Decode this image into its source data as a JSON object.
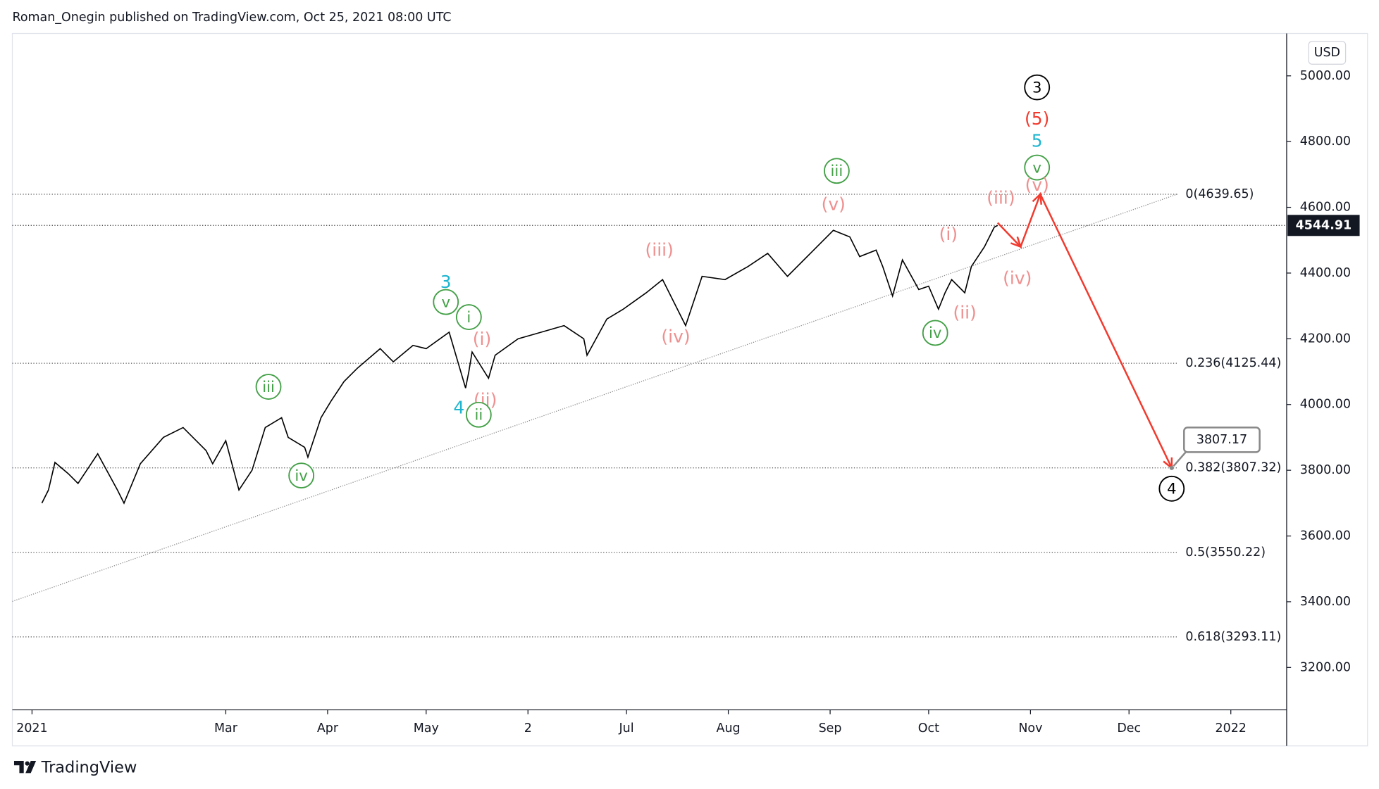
{
  "header": "Roman_Onegin published on TradingView.com, Oct 25, 2021 08:00 UTC",
  "footer": "TradingView",
  "chart_data": {
    "type": "line",
    "currency": "USD",
    "color": "#000000",
    "x": [
      3,
      5,
      7,
      11,
      14,
      20,
      26,
      28,
      33,
      40,
      46,
      53,
      55,
      59,
      63,
      67,
      71,
      76,
      78,
      83,
      84,
      88,
      91,
      95,
      99,
      106,
      110,
      116,
      120,
      127,
      132,
      133,
      134,
      139,
      141,
      148,
      155,
      162,
      168,
      169,
      175,
      180,
      187,
      192,
      199,
      204,
      211,
      218,
      224,
      230,
      237,
      244,
      249,
      252,
      257,
      259,
      262,
      265,
      270,
      273,
      276,
      278,
      280,
      284,
      286,
      290,
      293,
      294
    ],
    "values": [
      3700,
      3740,
      3824,
      3790,
      3760,
      3850,
      3740,
      3700,
      3820,
      3900,
      3930,
      3860,
      3820,
      3890,
      3740,
      3800,
      3930,
      3960,
      3900,
      3870,
      3840,
      3960,
      4010,
      4070,
      4110,
      4170,
      4130,
      4180,
      4170,
      4220,
      4050,
      4100,
      4160,
      4080,
      4150,
      4200,
      4220,
      4240,
      4200,
      4150,
      4260,
      4290,
      4340,
      4380,
      4240,
      4390,
      4380,
      4420,
      4460,
      4390,
      4460,
      4530,
      4510,
      4450,
      4470,
      4420,
      4330,
      4440,
      4350,
      4360,
      4290,
      4340,
      4380,
      4340,
      4420,
      4480,
      4540,
      4544.91
    ],
    "xlim": [
      -6,
      382
    ],
    "ylim": [
      3071,
      5129
    ],
    "xticks": [
      {
        "value": 0,
        "label": "2021"
      },
      {
        "value": 59,
        "label": "Mar"
      },
      {
        "value": 90,
        "label": "Apr"
      },
      {
        "value": 120,
        "label": "May"
      },
      {
        "value": 151,
        "label": "2"
      },
      {
        "value": 181,
        "label": "Jul"
      },
      {
        "value": 212,
        "label": "Aug"
      },
      {
        "value": 243,
        "label": "Sep"
      },
      {
        "value": 273,
        "label": "Oct"
      },
      {
        "value": 304,
        "label": "Nov"
      },
      {
        "value": 334,
        "label": "Dec"
      },
      {
        "value": 365,
        "label": "2022"
      }
    ],
    "yticks": [
      {
        "value": 5000,
        "label": "5000.00"
      },
      {
        "value": 4800,
        "label": "4800.00"
      },
      {
        "value": 4600,
        "label": "4600.00"
      },
      {
        "value": 4400,
        "label": "4400.00"
      },
      {
        "value": 4200,
        "label": "4200.00"
      },
      {
        "value": 4000,
        "label": "4000.00"
      },
      {
        "value": 3800,
        "label": "3800.00"
      },
      {
        "value": 3600,
        "label": "3600.00"
      },
      {
        "value": 3400,
        "label": "3400.00"
      },
      {
        "value": 3200,
        "label": "3200.00"
      }
    ],
    "last_price": 4544.91,
    "fib_levels": [
      {
        "value": 4639.65,
        "label": "0(4639.65)"
      },
      {
        "value": 4125.44,
        "label": "0.236(4125.44)"
      },
      {
        "value": 3807.32,
        "label": "0.382(3807.32)"
      },
      {
        "value": 3550.22,
        "label": "0.5(3550.22)"
      },
      {
        "value": 3293.11,
        "label": "0.618(3293.11)"
      }
    ],
    "trendline": {
      "x": [
        -6,
        349
      ],
      "y": [
        3401,
        4641
      ],
      "color": "#888888"
    },
    "projection": {
      "x": [
        294,
        301,
        307,
        347
      ],
      "y": [
        4553,
        4480,
        4640,
        3807
      ],
      "color": "#f23a2e"
    },
    "target": {
      "x": 347,
      "value": 3807.17
    },
    "annotations": [
      {
        "text": "3",
        "x": 306,
        "y": 4965,
        "color": "#000000",
        "circled": true
      },
      {
        "text": "(5)",
        "x": 306,
        "y": 4869,
        "color": "#f23a2e",
        "circled": false
      },
      {
        "text": "5",
        "x": 306,
        "y": 4802,
        "color": "#1eb5d0",
        "circled": false
      },
      {
        "text": "v",
        "x": 306,
        "y": 4721,
        "color": "#43a047",
        "circled": true
      },
      {
        "text": "(v)",
        "x": 306,
        "y": 4668,
        "color": "#ef8f8f",
        "circled": false
      },
      {
        "text": "(iii)",
        "x": 295,
        "y": 4628,
        "color": "#ef8f8f",
        "circled": false
      },
      {
        "text": "(i)",
        "x": 279,
        "y": 4518,
        "color": "#ef8f8f",
        "circled": false
      },
      {
        "text": "(iv)",
        "x": 300,
        "y": 4384,
        "color": "#ef8f8f",
        "circled": false
      },
      {
        "text": "(ii)",
        "x": 284,
        "y": 4279,
        "color": "#ef8f8f",
        "circled": false
      },
      {
        "text": "iv",
        "x": 275,
        "y": 4218,
        "color": "#43a047",
        "circled": true
      },
      {
        "text": "iii",
        "x": 245,
        "y": 4711,
        "color": "#43a047",
        "circled": true
      },
      {
        "text": "(v)",
        "x": 244,
        "y": 4609,
        "color": "#ef8f8f",
        "circled": false
      },
      {
        "text": "(iii)",
        "x": 191,
        "y": 4470,
        "color": "#ef8f8f",
        "circled": false
      },
      {
        "text": "(iv)",
        "x": 196,
        "y": 4207,
        "color": "#ef8f8f",
        "circled": false
      },
      {
        "text": "3",
        "x": 126,
        "y": 4373,
        "color": "#1eb5d0",
        "circled": false
      },
      {
        "text": "v",
        "x": 126,
        "y": 4312,
        "color": "#43a047",
        "circled": true
      },
      {
        "text": "i",
        "x": 133,
        "y": 4266,
        "color": "#43a047",
        "circled": true
      },
      {
        "text": "(i)",
        "x": 137,
        "y": 4199,
        "color": "#ef8f8f",
        "circled": false
      },
      {
        "text": "(ii)",
        "x": 138,
        "y": 4014,
        "color": "#ef8f8f",
        "circled": false
      },
      {
        "text": "4",
        "x": 130,
        "y": 3990,
        "color": "#1eb5d0",
        "circled": false
      },
      {
        "text": "ii",
        "x": 136,
        "y": 3969,
        "color": "#43a047",
        "circled": true
      },
      {
        "text": "iii",
        "x": 72,
        "y": 4054,
        "color": "#43a047",
        "circled": true
      },
      {
        "text": "iv",
        "x": 82,
        "y": 3784,
        "color": "#43a047",
        "circled": true
      },
      {
        "text": "4",
        "x": 347,
        "y": 3744,
        "color": "#000000",
        "circled": true
      }
    ]
  }
}
